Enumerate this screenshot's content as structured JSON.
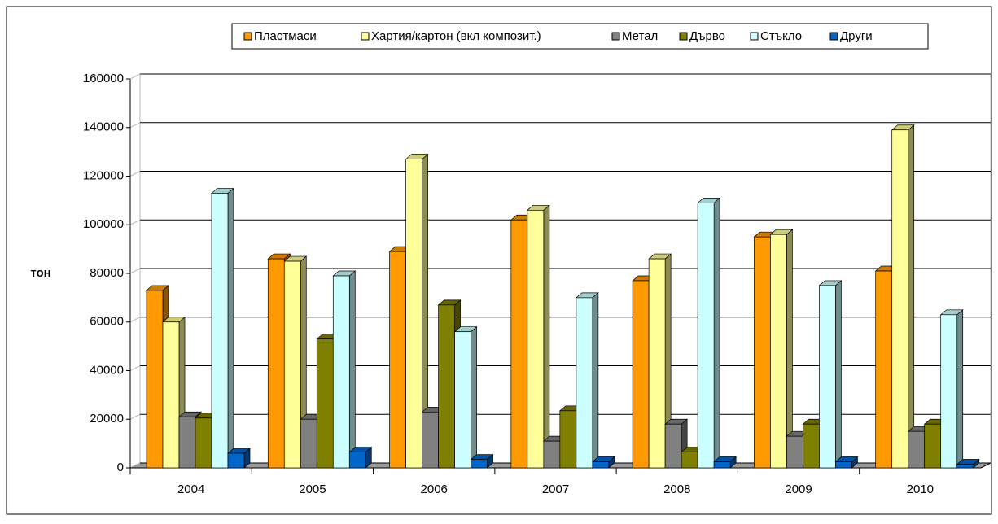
{
  "chart_data": {
    "type": "bar3d",
    "y_label": "тон",
    "categories": [
      "2004",
      "2005",
      "2006",
      "2007",
      "2008",
      "2009",
      "2010"
    ],
    "series": [
      {
        "name": "Пластмаси",
        "color": "#ff9900",
        "values": [
          73000,
          86000,
          89000,
          102000,
          77000,
          95000,
          81000
        ]
      },
      {
        "name": "Хартия/картон (вкл композит.)",
        "color": "#ffff99",
        "values": [
          60000,
          85000,
          127000,
          106000,
          86000,
          96000,
          139000
        ]
      },
      {
        "name": "Метал",
        "color": "#808080",
        "values": [
          21000,
          20000,
          23000,
          11000,
          18000,
          13000,
          15000
        ]
      },
      {
        "name": "Дърво",
        "color": "#808000",
        "values": [
          20500,
          53000,
          67000,
          23500,
          6500,
          18000,
          18000
        ]
      },
      {
        "name": "Стъкло",
        "color": "#ccffff",
        "values": [
          113000,
          79000,
          56000,
          70000,
          109000,
          75000,
          63000
        ]
      },
      {
        "name": "Други",
        "color": "#0066cc",
        "values": [
          6000,
          6500,
          3500,
          2500,
          2500,
          2500,
          1500
        ]
      }
    ],
    "ylim": [
      0,
      160000
    ],
    "yticks": [
      0,
      20000,
      40000,
      60000,
      80000,
      100000,
      120000,
      140000,
      160000
    ],
    "grid": true
  }
}
